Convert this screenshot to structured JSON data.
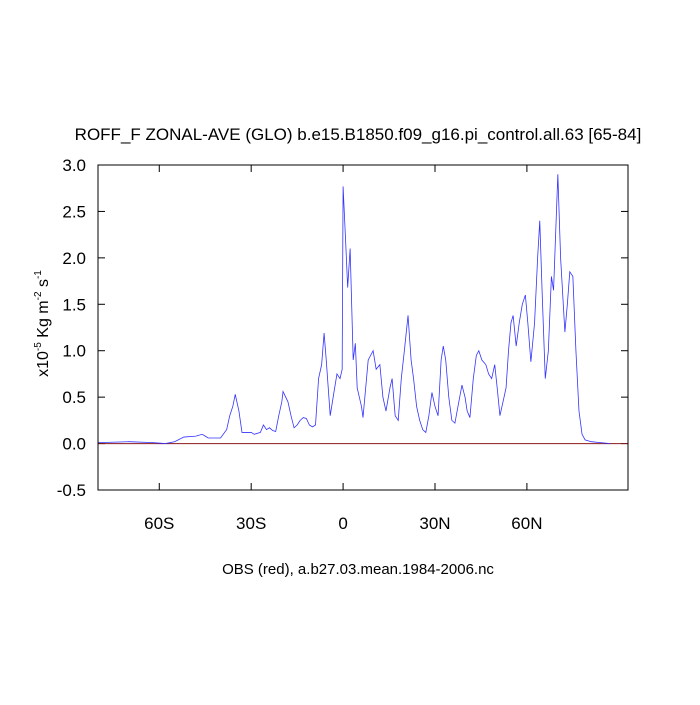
{
  "chart_data": {
    "type": "line",
    "title": "ROFF_F ZONAL-AVE (GLO) b.e15.B1850.f09_g16.pi_control.all.63 [65-84]",
    "xlabel": "OBS (red), a.b27.03.mean.1984-2006.nc",
    "ylabel": [
      {
        "text": "x10"
      },
      {
        "text": "-5",
        "sup": true
      },
      {
        "text": " Kg m"
      },
      {
        "text": "-2",
        "sup": true
      },
      {
        "text": " s"
      },
      {
        "text": "-1",
        "sup": true
      }
    ],
    "xlim": [
      -80,
      93
    ],
    "ylim": [
      -0.5,
      3
    ],
    "xticks": [
      {
        "value": -60,
        "label": "60S"
      },
      {
        "value": -30,
        "label": "30S"
      },
      0,
      {
        "value": 30,
        "label": "30N"
      },
      {
        "value": 60,
        "label": "60N"
      }
    ],
    "yticks": [
      -0.5,
      {
        "value": 0,
        "label": "0.0"
      },
      0.5,
      {
        "value": 1,
        "label": "1.0"
      },
      1.5,
      {
        "value": 2,
        "label": "2.0"
      },
      2.5,
      {
        "value": 3,
        "label": "3.0"
      }
    ],
    "reference_line": {
      "value": 0,
      "color": "#8b1a1a"
    },
    "series": [
      {
        "color": "#3333ff",
        "x": [
          -80,
          -70,
          -62,
          -58,
          -55,
          -52,
          -48,
          -46,
          -45,
          -44,
          -40,
          -38,
          -37,
          -36,
          -35.2,
          -34,
          -33,
          -30,
          -29,
          -27,
          -26,
          -25,
          -24,
          -23,
          -22,
          -21,
          -20,
          -19.6,
          -18,
          -17,
          -16,
          -15,
          -14,
          -13,
          -12,
          -11,
          -10,
          -9,
          -8,
          -7,
          -6.2,
          -5.5,
          -4.2,
          -3,
          -2,
          -1,
          -0.3,
          0,
          0.8,
          1.5,
          2.3,
          3.3,
          4,
          4.6,
          6,
          6.5,
          8.2,
          9.8,
          10.8,
          12,
          13,
          14,
          15.3,
          16,
          17,
          18,
          19,
          20,
          21.2,
          22.2,
          23,
          24,
          25,
          26,
          27,
          28,
          29,
          30,
          31,
          32,
          32.7,
          33.5,
          34.5,
          35.5,
          36.5,
          37.5,
          38.8,
          39.8,
          40.5,
          41.4,
          42.5,
          43.5,
          44.3,
          45.3,
          46.6,
          47.5,
          48.5,
          49.5,
          50.3,
          51.2,
          52.2,
          53.2,
          54,
          54.8,
          55.5,
          56.5,
          57.5,
          58.5,
          59.5,
          60.3,
          61.3,
          62.5,
          63.5,
          64.2,
          65,
          66,
          67,
          68,
          68.7,
          70.1,
          71,
          72.4,
          73.2,
          74,
          75,
          76,
          77,
          78,
          79,
          81,
          84,
          87
        ],
        "values": [
          0.01,
          0.02,
          0.01,
          0.0,
          0.02,
          0.07,
          0.08,
          0.1,
          0.08,
          0.06,
          0.06,
          0.15,
          0.3,
          0.4,
          0.53,
          0.35,
          0.12,
          0.12,
          0.1,
          0.12,
          0.2,
          0.15,
          0.17,
          0.14,
          0.13,
          0.3,
          0.45,
          0.56,
          0.45,
          0.3,
          0.17,
          0.2,
          0.25,
          0.28,
          0.27,
          0.2,
          0.18,
          0.2,
          0.7,
          0.85,
          1.19,
          0.9,
          0.3,
          0.55,
          0.75,
          0.7,
          0.8,
          2.77,
          2.2,
          1.68,
          2.1,
          0.9,
          1.08,
          0.6,
          0.4,
          0.28,
          0.9,
          1.0,
          0.8,
          0.85,
          0.5,
          0.35,
          0.6,
          0.7,
          0.3,
          0.25,
          0.7,
          1.0,
          1.38,
          0.9,
          0.7,
          0.4,
          0.25,
          0.15,
          0.12,
          0.3,
          0.55,
          0.4,
          0.3,
          0.9,
          1.05,
          0.9,
          0.5,
          0.25,
          0.22,
          0.4,
          0.63,
          0.5,
          0.35,
          0.28,
          0.7,
          0.95,
          1.0,
          0.9,
          0.85,
          0.75,
          0.7,
          0.85,
          0.6,
          0.3,
          0.45,
          0.6,
          1.0,
          1.3,
          1.38,
          1.05,
          1.3,
          1.5,
          1.6,
          1.3,
          0.88,
          1.3,
          2.0,
          2.4,
          1.6,
          0.7,
          1.0,
          1.8,
          1.65,
          2.9,
          2.0,
          1.2,
          1.5,
          1.85,
          1.8,
          1.0,
          0.35,
          0.1,
          0.04,
          0.02,
          0.01,
          0
        ]
      }
    ]
  }
}
